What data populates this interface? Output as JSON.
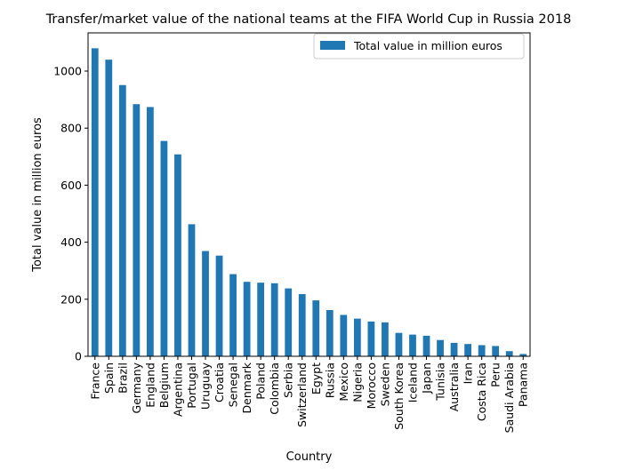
{
  "chart_data": {
    "type": "bar",
    "title": "Transfer/market value of the national teams at the FIFA World Cup in Russia 2018",
    "xlabel": "Country",
    "ylabel": "Total value in million euros",
    "ylim": [
      0,
      1134
    ],
    "yticks": [
      0,
      200,
      400,
      600,
      800,
      1000
    ],
    "grid": false,
    "legend_position": "top-right",
    "categories": [
      "France",
      "Spain",
      "Brazil",
      "Germany",
      "England",
      "Belgium",
      "Argentina",
      "Portugal",
      "Uruguay",
      "Croatia",
      "Senegal",
      "Denmark",
      "Poland",
      "Colombia",
      "Serbia",
      "Switzerland",
      "Egypt",
      "Russia",
      "Mexico",
      "Nigeria",
      "Morocco",
      "Sweden",
      "South Korea",
      "Iceland",
      "Japan",
      "Tunisia",
      "Australia",
      "Iran",
      "Costa Rica",
      "Peru",
      "Saudi Arabia",
      "Panama"
    ],
    "series": [
      {
        "name": "Total value in million euros",
        "color": "#1f77b4",
        "values": [
          1080,
          1040,
          951,
          884,
          874,
          755,
          708,
          463,
          369,
          353,
          288,
          261,
          258,
          256,
          238,
          218,
          196,
          162,
          145,
          132,
          122,
          119,
          82,
          76,
          72,
          57,
          47,
          43,
          39,
          36,
          18,
          8
        ]
      }
    ]
  }
}
